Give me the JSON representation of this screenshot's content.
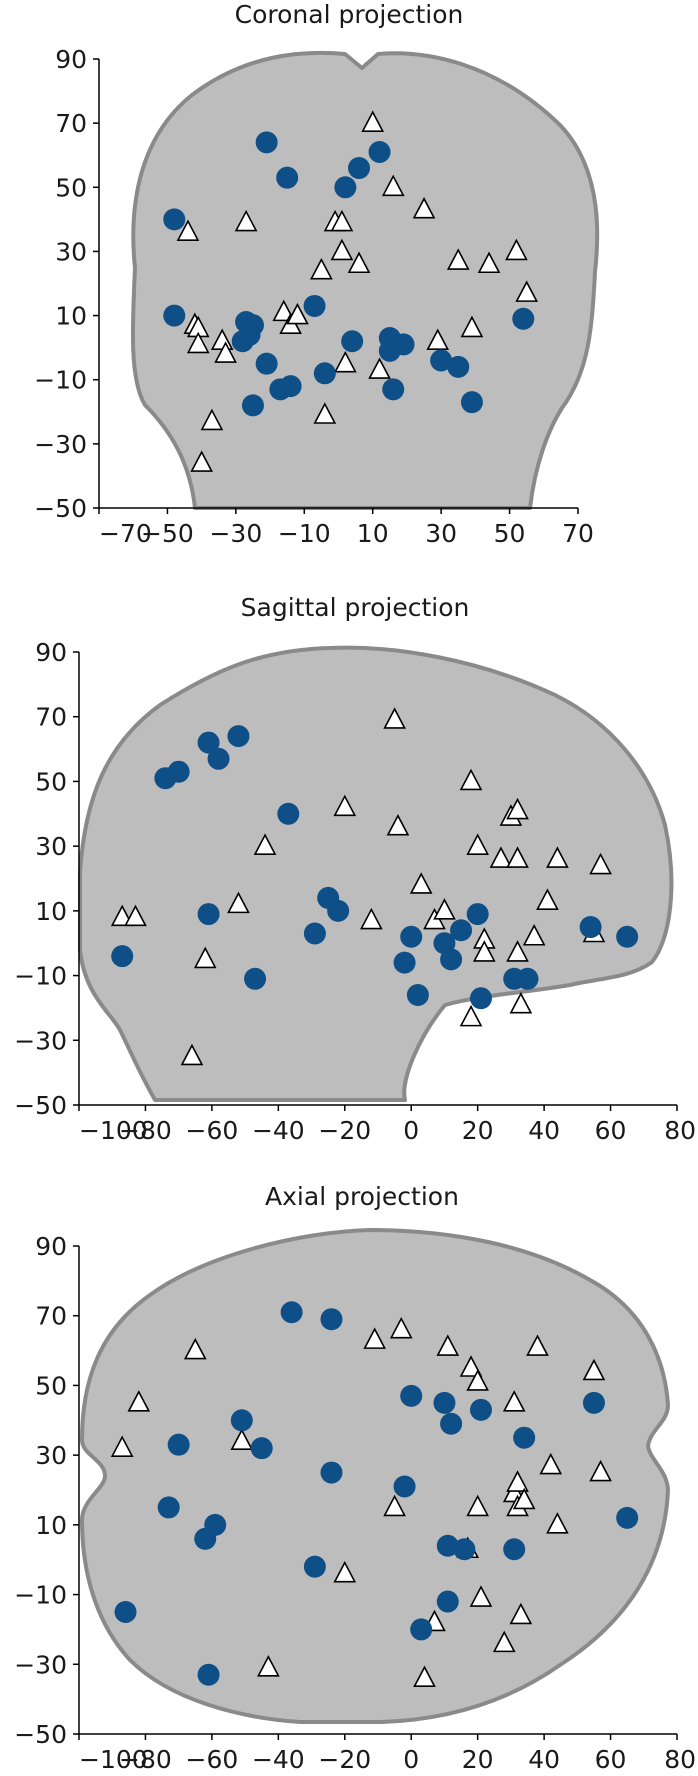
{
  "colors": {
    "circle": "#0e4f88",
    "triangle_fill": "#ffffff",
    "brain_fill": "#bdbdbd"
  },
  "chart_data": [
    {
      "type": "scatter",
      "title": "Coronal projection",
      "xlim": [
        -70,
        70
      ],
      "ylim": [
        -50,
        90
      ],
      "xticks": [
        -70,
        -50,
        -30,
        -10,
        10,
        30,
        50,
        70
      ],
      "yticks": [
        -50,
        -30,
        -10,
        10,
        30,
        50,
        70,
        90
      ],
      "xtick_labels": [
        "−70",
        "−50",
        "−30",
        "−10",
        "10",
        "30",
        "50",
        "70"
      ],
      "ytick_labels": [
        "−50",
        "−30",
        "−10",
        "10",
        "30",
        "50",
        "70",
        "90"
      ],
      "circles": [
        [
          -48,
          40
        ],
        [
          -48,
          10
        ],
        [
          -27,
          8
        ],
        [
          -25,
          7
        ],
        [
          -28,
          2
        ],
        [
          -26,
          4
        ],
        [
          -21,
          64
        ],
        [
          -15,
          53
        ],
        [
          -21,
          -5
        ],
        [
          -17,
          -13
        ],
        [
          -14,
          -12
        ],
        [
          -25,
          -18
        ],
        [
          -7,
          13
        ],
        [
          -4,
          -8
        ],
        [
          2,
          50
        ],
        [
          6,
          56
        ],
        [
          12,
          61
        ],
        [
          4,
          2
        ],
        [
          15,
          3
        ],
        [
          15,
          -1
        ],
        [
          19,
          1
        ],
        [
          16,
          -13
        ],
        [
          30,
          -4
        ],
        [
          35,
          -6
        ],
        [
          39,
          -17
        ],
        [
          54,
          9
        ]
      ],
      "triangles": [
        [
          -44,
          36
        ],
        [
          -42,
          7
        ],
        [
          -41,
          6
        ],
        [
          -41,
          1
        ],
        [
          -34,
          2
        ],
        [
          -33,
          -2
        ],
        [
          -37,
          -23
        ],
        [
          -40,
          -36
        ],
        [
          -27,
          39
        ],
        [
          -16,
          11
        ],
        [
          -14,
          7
        ],
        [
          -12,
          10
        ],
        [
          -5,
          24
        ],
        [
          -4,
          -21
        ],
        [
          -1,
          39
        ],
        [
          1,
          39
        ],
        [
          1,
          30
        ],
        [
          2,
          -5
        ],
        [
          6,
          26
        ],
        [
          10,
          70
        ],
        [
          12,
          -7
        ],
        [
          16,
          50
        ],
        [
          25,
          43
        ],
        [
          29,
          2
        ],
        [
          35,
          27
        ],
        [
          39,
          6
        ],
        [
          44,
          26
        ],
        [
          52,
          30
        ],
        [
          55,
          17
        ]
      ]
    },
    {
      "type": "scatter",
      "title": "Sagittal projection",
      "xlim": [
        -100,
        80
      ],
      "ylim": [
        -50,
        90
      ],
      "xticks": [
        -100,
        -80,
        -60,
        -40,
        -20,
        0,
        20,
        40,
        60,
        80
      ],
      "yticks": [
        -50,
        -30,
        -10,
        10,
        30,
        50,
        70,
        90
      ],
      "xtick_labels": [
        "−100",
        "−80",
        "−60",
        "−40",
        "−20",
        "0",
        "20",
        "40",
        "60",
        "80"
      ],
      "ytick_labels": [
        "−50",
        "−30",
        "−10",
        "10",
        "30",
        "50",
        "70",
        "90"
      ],
      "circles": [
        [
          -74,
          51
        ],
        [
          -70,
          53
        ],
        [
          -61,
          62
        ],
        [
          -58,
          57
        ],
        [
          -52,
          64
        ],
        [
          -37,
          40
        ],
        [
          -61,
          9
        ],
        [
          -87,
          -4
        ],
        [
          -47,
          -11
        ],
        [
          -29,
          3
        ],
        [
          -25,
          14
        ],
        [
          -22,
          10
        ],
        [
          -2,
          -6
        ],
        [
          0,
          2
        ],
        [
          2,
          -16
        ],
        [
          10,
          0
        ],
        [
          12,
          -5
        ],
        [
          15,
          4
        ],
        [
          20,
          9
        ],
        [
          21,
          -17
        ],
        [
          31,
          -11
        ],
        [
          35,
          -11
        ],
        [
          54,
          5
        ],
        [
          65,
          2
        ]
      ],
      "triangles": [
        [
          -87,
          8
        ],
        [
          -83,
          8
        ],
        [
          -66,
          -35
        ],
        [
          -62,
          -5
        ],
        [
          -52,
          12
        ],
        [
          -44,
          30
        ],
        [
          -20,
          42
        ],
        [
          -12,
          7
        ],
        [
          -5,
          69
        ],
        [
          -4,
          36
        ],
        [
          3,
          18
        ],
        [
          7,
          7
        ],
        [
          10,
          10
        ],
        [
          18,
          -23
        ],
        [
          18,
          50
        ],
        [
          20,
          30
        ],
        [
          22,
          1
        ],
        [
          22,
          -3
        ],
        [
          27,
          26
        ],
        [
          30,
          39
        ],
        [
          32,
          41
        ],
        [
          32,
          26
        ],
        [
          32,
          -3
        ],
        [
          33,
          -19
        ],
        [
          37,
          2
        ],
        [
          41,
          13
        ],
        [
          44,
          26
        ],
        [
          55,
          3
        ],
        [
          57,
          24
        ]
      ]
    },
    {
      "type": "scatter",
      "title": "Axial projection",
      "xlim": [
        -100,
        80
      ],
      "ylim": [
        -50,
        90
      ],
      "xticks": [
        -100,
        -80,
        -60,
        -40,
        -20,
        0,
        20,
        40,
        60,
        80
      ],
      "yticks": [
        -50,
        -30,
        -10,
        10,
        30,
        50,
        70,
        90
      ],
      "xtick_labels": [
        "−100",
        "−80",
        "−60",
        "−40",
        "−20",
        "0",
        "20",
        "40",
        "60",
        "80"
      ],
      "ytick_labels": [
        "−50",
        "−30",
        "−10",
        "10",
        "30",
        "50",
        "70",
        "90"
      ],
      "circles": [
        [
          -86,
          -15
        ],
        [
          -73,
          15
        ],
        [
          -70,
          33
        ],
        [
          -62,
          6
        ],
        [
          -59,
          10
        ],
        [
          -51,
          40
        ],
        [
          -45,
          32
        ],
        [
          -61,
          -33
        ],
        [
          -36,
          71
        ],
        [
          -24,
          69
        ],
        [
          -29,
          -2
        ],
        [
          -24,
          25
        ],
        [
          -2,
          21
        ],
        [
          0,
          47
        ],
        [
          10,
          45
        ],
        [
          12,
          39
        ],
        [
          11,
          4
        ],
        [
          16,
          3
        ],
        [
          11,
          -12
        ],
        [
          3,
          -20
        ],
        [
          21,
          43
        ],
        [
          31,
          3
        ],
        [
          34,
          35
        ],
        [
          55,
          45
        ],
        [
          65,
          12
        ]
      ],
      "triangles": [
        [
          -87,
          32
        ],
        [
          -82,
          45
        ],
        [
          -65,
          60
        ],
        [
          -51,
          34
        ],
        [
          -43,
          -31
        ],
        [
          -20,
          -4
        ],
        [
          -11,
          63
        ],
        [
          -5,
          15
        ],
        [
          -3,
          66
        ],
        [
          7,
          -18
        ],
        [
          4,
          -34
        ],
        [
          11,
          61
        ],
        [
          18,
          55
        ],
        [
          20,
          51
        ],
        [
          20,
          15
        ],
        [
          21,
          -11
        ],
        [
          17,
          3
        ],
        [
          28,
          -24
        ],
        [
          31,
          45
        ],
        [
          31,
          19
        ],
        [
          32,
          15
        ],
        [
          32,
          22
        ],
        [
          34,
          17
        ],
        [
          33,
          -16
        ],
        [
          38,
          61
        ],
        [
          42,
          27
        ],
        [
          44,
          10
        ],
        [
          55,
          54
        ],
        [
          57,
          25
        ]
      ]
    }
  ]
}
